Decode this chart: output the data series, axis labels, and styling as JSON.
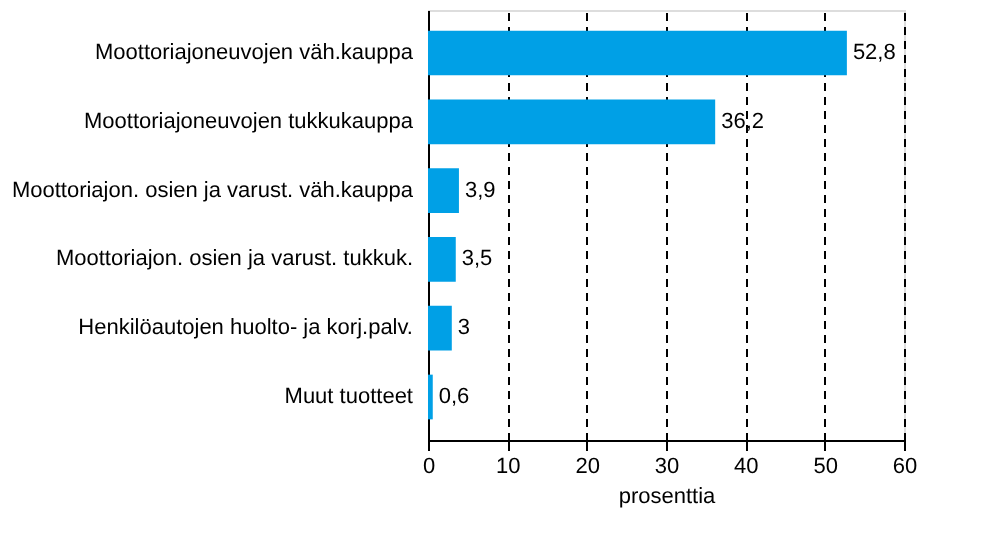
{
  "chart_data": {
    "type": "bar",
    "orientation": "horizontal",
    "categories": [
      "Moottoriajoneuvojen väh.kauppa",
      "Moottoriajoneuvojen tukkukauppa",
      "Moottoriajon. osien ja varust. väh.kauppa",
      "Moottoriajon. osien ja varust. tukkuk.",
      "Henkilöautojen huolto- ja korj.palv.",
      "Muut tuotteet"
    ],
    "values": [
      52.8,
      36.2,
      3.9,
      3.5,
      3,
      0.6
    ],
    "value_labels": [
      "52,8",
      "36,2",
      "3,9",
      "3,5",
      "3",
      "0,6"
    ],
    "color": "#00a0e6",
    "xlim": [
      0,
      60
    ],
    "xticks": [
      0,
      10,
      20,
      30,
      40,
      50,
      60
    ],
    "xlabel": "prosenttia",
    "grid": "x"
  }
}
